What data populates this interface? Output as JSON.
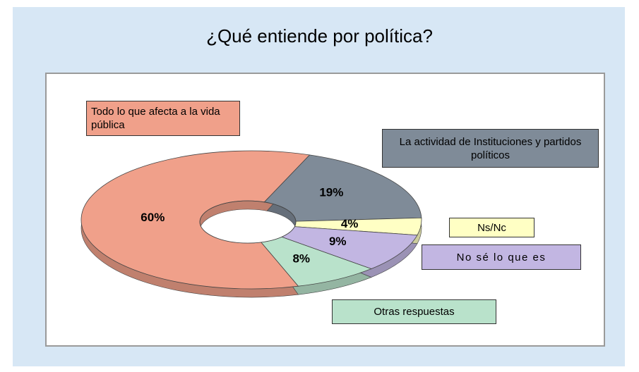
{
  "chart_data": {
    "type": "donut3d",
    "title": "¿Qué entiende por política?",
    "categories": [
      "La actividad de Instituciones y partidos políticos",
      "Ns/Nc",
      "No sé lo que es",
      "Otras respuestas",
      "Todo lo que afecta a la vida pública"
    ],
    "values": [
      19,
      4,
      9,
      8,
      60
    ],
    "value_labels": [
      "19%",
      "4%",
      "9%",
      "8%",
      "60%"
    ],
    "colors": [
      "#7f8b98",
      "#ffffc4",
      "#c2b6e2",
      "#b9e2cb",
      "#f0a08a"
    ],
    "legend": "callouts"
  }
}
